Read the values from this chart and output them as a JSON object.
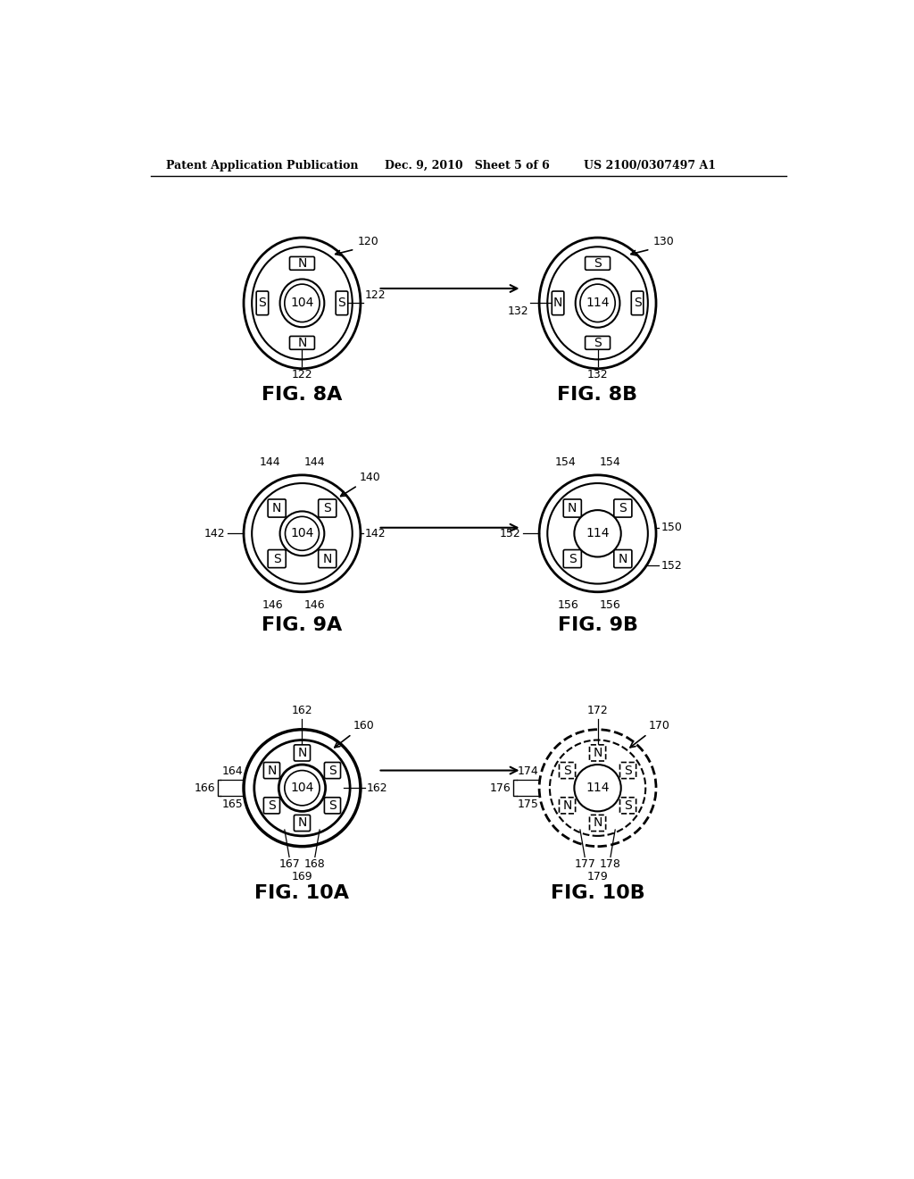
{
  "header_left": "Patent Application Publication",
  "header_mid": "Dec. 9, 2010   Sheet 5 of 6",
  "header_right": "US 2100/0307497 A1",
  "background": "#ffffff"
}
